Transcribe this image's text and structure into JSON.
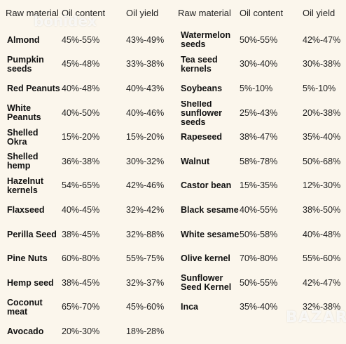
{
  "headers": {
    "left": [
      "Raw material",
      "Oil content",
      "Oil yield"
    ],
    "right": [
      "Raw material",
      "Oil content",
      "Oil yield"
    ]
  },
  "rows": [
    [
      [
        "Almond"
      ],
      "45%-55%",
      "43%-49%",
      [
        "Watermelon",
        "seeds"
      ],
      "50%-55%",
      "42%-47%"
    ],
    [
      [
        "Pumpkin",
        "seeds"
      ],
      "45%-48%",
      "33%-38%",
      [
        "Tea seed",
        "kernels"
      ],
      "30%-40%",
      "30%-38%"
    ],
    [
      [
        "Red Peanuts"
      ],
      "40%-48%",
      "40%-43%",
      [
        "Soybeans"
      ],
      "5%-10%",
      "5%-10%"
    ],
    [
      [
        "White",
        "Peanuts"
      ],
      "40%-50%",
      "40%-46%",
      [
        "Shelled",
        "sunflower seeds"
      ],
      "25%-43%",
      "20%-38%"
    ],
    [
      [
        "Shelled",
        "Okra"
      ],
      "15%-20%",
      "15%-20%",
      [
        "Rapeseed"
      ],
      "38%-47%",
      "35%-40%"
    ],
    [
      [
        "Shelled",
        "hemp"
      ],
      "36%-38%",
      "30%-32%",
      [
        "Walnut"
      ],
      "58%-78%",
      "50%-68%"
    ],
    [
      [
        "Hazelnut",
        "kernels"
      ],
      "54%-65%",
      "42%-46%",
      [
        "Castor bean"
      ],
      "15%-35%",
      "12%-30%"
    ],
    [
      [
        "Flaxseed"
      ],
      "40%-45%",
      "32%-42%",
      [
        "Black sesame"
      ],
      "40%-55%",
      "38%-50%"
    ],
    [
      [
        "Perilla Seed"
      ],
      "38%-45%",
      "32%-88%",
      [
        "White sesame"
      ],
      "50%-58%",
      "40%-48%"
    ],
    [
      [
        "Pine Nuts"
      ],
      "60%-80%",
      "55%-75%",
      [
        "Olive kernel"
      ],
      "70%-80%",
      "55%-60%"
    ],
    [
      [
        "Hemp seed"
      ],
      "38%-45%",
      "32%-37%",
      [
        "Sunflower",
        "Seed Kernel"
      ],
      "50%-55%",
      "42%-47%"
    ],
    [
      [
        "Coconut",
        "meat"
      ],
      "65%-70%",
      "45%-60%",
      [
        "Inca"
      ],
      "35%-40%",
      "32%-38%"
    ],
    [
      [
        "Avocado"
      ],
      "20%-30%",
      "18%-28%",
      [],
      "",
      ""
    ]
  ],
  "watermarks": [
    "bonidex",
    "BAZAR"
  ]
}
